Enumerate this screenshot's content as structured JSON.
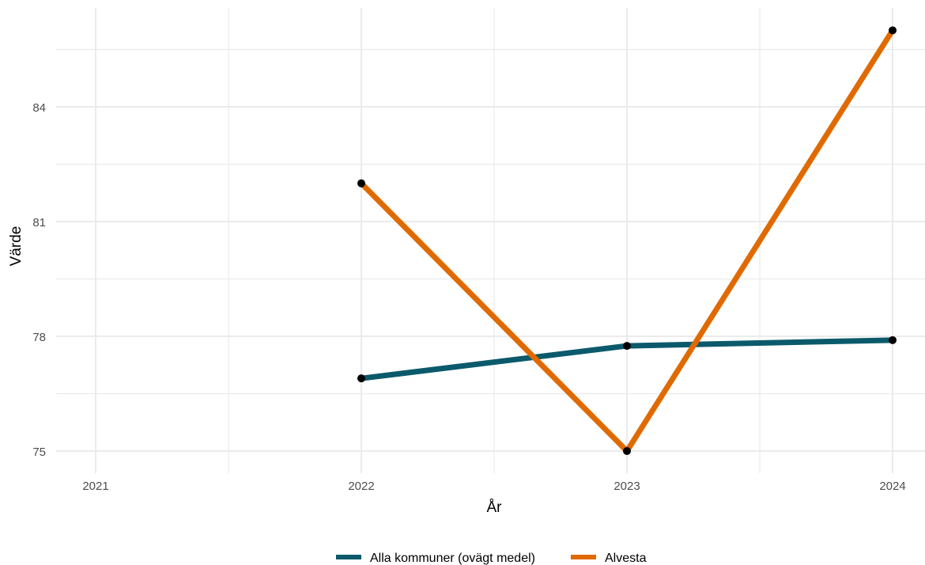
{
  "chart_data": {
    "type": "line",
    "xlabel": "År",
    "ylabel": "Värde",
    "x": [
      2021,
      2022,
      2023,
      2024
    ],
    "x_ticks": [
      "2021",
      "2022",
      "2023",
      "2024"
    ],
    "y_ticks": [
      "75",
      "78",
      "81",
      "84"
    ],
    "xlim": [
      2020.85,
      2024.12
    ],
    "ylim": [
      74.6,
      86.5
    ],
    "grid": true,
    "legend_position": "bottom",
    "series": [
      {
        "name": "Alla kommuner (ovägt medel)",
        "color": "#0b5a6b",
        "x": [
          2022,
          2023,
          2024
        ],
        "values": [
          76.9,
          77.75,
          77.9
        ]
      },
      {
        "name": "Alvesta",
        "color": "#e06a00",
        "x": [
          2022,
          2023,
          2024
        ],
        "values": [
          82.0,
          75.0,
          86.0
        ]
      }
    ]
  }
}
